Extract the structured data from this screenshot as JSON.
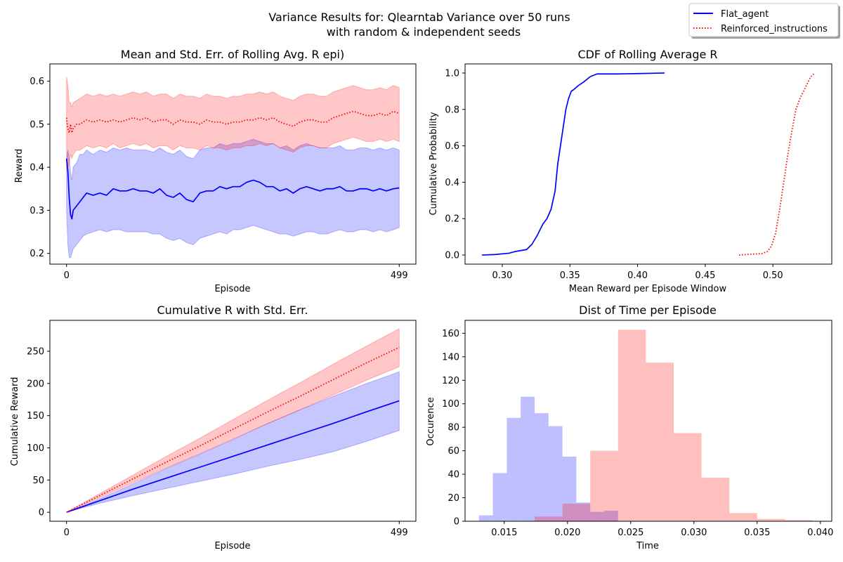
{
  "suptitle": [
    "Variance Results for: Qlearntab Variance over 50 runs",
    "with random & independent seeds"
  ],
  "legend": {
    "placement": "top-right",
    "entries": [
      {
        "label": "Flat_agent",
        "color": "#0000ff",
        "style": "solid"
      },
      {
        "label": "Reinforced_instructions",
        "color": "#ff0000",
        "style": "dotted"
      }
    ]
  },
  "colors": {
    "flat": "#0000ff",
    "reinforced": "#ff0000",
    "flat_fill": "#0000ff",
    "reinforced_fill": "#ff0000"
  },
  "chart_data": [
    {
      "id": "rolling",
      "type": "line",
      "title": "Mean and Std. Err. of Rolling Avg. R epi)",
      "xlabel": "Episode",
      "ylabel": "Reward",
      "xlim": [
        -25,
        524
      ],
      "ylim": [
        0.175,
        0.64
      ],
      "xticks": [
        0,
        499
      ],
      "yticks": [
        0.2,
        0.3,
        0.4,
        0.5,
        0.6
      ],
      "ytick_labels": [
        "0.2",
        "0.3",
        "0.4",
        "0.5",
        "0.6"
      ],
      "series": [
        {
          "key": "flat",
          "style": "solid",
          "x": [
            0,
            2,
            4,
            6,
            8,
            10,
            15,
            20,
            25,
            30,
            40,
            50,
            60,
            70,
            80,
            90,
            100,
            110,
            120,
            130,
            140,
            150,
            160,
            170,
            180,
            190,
            200,
            210,
            220,
            230,
            240,
            250,
            260,
            270,
            280,
            290,
            300,
            310,
            320,
            330,
            340,
            350,
            360,
            370,
            380,
            390,
            400,
            410,
            420,
            430,
            440,
            450,
            460,
            470,
            480,
            490,
            499
          ],
          "mean": [
            0.42,
            0.39,
            0.33,
            0.29,
            0.28,
            0.3,
            0.31,
            0.32,
            0.33,
            0.34,
            0.335,
            0.34,
            0.335,
            0.35,
            0.345,
            0.345,
            0.35,
            0.345,
            0.345,
            0.34,
            0.35,
            0.335,
            0.33,
            0.34,
            0.325,
            0.32,
            0.34,
            0.345,
            0.345,
            0.355,
            0.35,
            0.355,
            0.355,
            0.365,
            0.37,
            0.365,
            0.355,
            0.355,
            0.345,
            0.35,
            0.34,
            0.35,
            0.355,
            0.35,
            0.345,
            0.35,
            0.35,
            0.355,
            0.345,
            0.345,
            0.35,
            0.35,
            0.345,
            0.35,
            0.345,
            0.35,
            0.352
          ],
          "lower": [
            0.3,
            0.22,
            0.19,
            0.19,
            0.2,
            0.21,
            0.22,
            0.23,
            0.24,
            0.245,
            0.25,
            0.255,
            0.25,
            0.255,
            0.255,
            0.25,
            0.25,
            0.25,
            0.25,
            0.245,
            0.245,
            0.235,
            0.23,
            0.235,
            0.225,
            0.22,
            0.235,
            0.24,
            0.245,
            0.25,
            0.245,
            0.255,
            0.255,
            0.26,
            0.265,
            0.26,
            0.255,
            0.25,
            0.245,
            0.245,
            0.24,
            0.245,
            0.25,
            0.25,
            0.245,
            0.245,
            0.25,
            0.255,
            0.25,
            0.25,
            0.255,
            0.255,
            0.25,
            0.255,
            0.25,
            0.255,
            0.26
          ],
          "upper": [
            0.42,
            0.44,
            0.42,
            0.39,
            0.37,
            0.4,
            0.41,
            0.43,
            0.43,
            0.44,
            0.43,
            0.44,
            0.435,
            0.445,
            0.44,
            0.445,
            0.44,
            0.44,
            0.44,
            0.435,
            0.445,
            0.435,
            0.43,
            0.44,
            0.425,
            0.42,
            0.44,
            0.445,
            0.445,
            0.455,
            0.45,
            0.455,
            0.455,
            0.46,
            0.465,
            0.46,
            0.455,
            0.455,
            0.445,
            0.45,
            0.44,
            0.45,
            0.455,
            0.45,
            0.445,
            0.445,
            0.445,
            0.45,
            0.44,
            0.44,
            0.445,
            0.445,
            0.44,
            0.445,
            0.44,
            0.445,
            0.44
          ]
        },
        {
          "key": "reinforced",
          "style": "dotted",
          "x": [
            0,
            2,
            4,
            6,
            8,
            10,
            15,
            20,
            25,
            30,
            40,
            50,
            60,
            70,
            80,
            90,
            100,
            110,
            120,
            130,
            140,
            150,
            160,
            170,
            180,
            190,
            200,
            210,
            220,
            230,
            240,
            250,
            260,
            270,
            280,
            290,
            300,
            310,
            320,
            330,
            340,
            350,
            360,
            370,
            380,
            390,
            400,
            410,
            420,
            430,
            440,
            450,
            460,
            470,
            480,
            490,
            499
          ],
          "mean": [
            0.515,
            0.49,
            0.48,
            0.5,
            0.48,
            0.49,
            0.5,
            0.5,
            0.505,
            0.51,
            0.505,
            0.51,
            0.505,
            0.51,
            0.505,
            0.51,
            0.515,
            0.51,
            0.515,
            0.505,
            0.51,
            0.51,
            0.5,
            0.51,
            0.505,
            0.505,
            0.5,
            0.51,
            0.505,
            0.505,
            0.5,
            0.505,
            0.505,
            0.51,
            0.51,
            0.515,
            0.51,
            0.515,
            0.505,
            0.5,
            0.495,
            0.505,
            0.51,
            0.51,
            0.505,
            0.505,
            0.515,
            0.52,
            0.525,
            0.53,
            0.525,
            0.52,
            0.52,
            0.525,
            0.52,
            0.53,
            0.525
          ],
          "lower": [
            0.43,
            0.4,
            0.41,
            0.43,
            0.42,
            0.43,
            0.44,
            0.44,
            0.445,
            0.45,
            0.445,
            0.45,
            0.445,
            0.455,
            0.445,
            0.45,
            0.455,
            0.45,
            0.455,
            0.445,
            0.45,
            0.45,
            0.44,
            0.45,
            0.445,
            0.445,
            0.44,
            0.45,
            0.445,
            0.445,
            0.44,
            0.445,
            0.445,
            0.45,
            0.45,
            0.455,
            0.45,
            0.455,
            0.445,
            0.44,
            0.435,
            0.445,
            0.45,
            0.45,
            0.445,
            0.445,
            0.455,
            0.46,
            0.465,
            0.47,
            0.465,
            0.46,
            0.46,
            0.465,
            0.46,
            0.465,
            0.46
          ],
          "upper": [
            0.61,
            0.59,
            0.55,
            0.55,
            0.54,
            0.55,
            0.555,
            0.56,
            0.565,
            0.57,
            0.565,
            0.57,
            0.565,
            0.57,
            0.565,
            0.57,
            0.575,
            0.57,
            0.575,
            0.565,
            0.57,
            0.57,
            0.56,
            0.57,
            0.565,
            0.565,
            0.56,
            0.57,
            0.565,
            0.565,
            0.56,
            0.565,
            0.565,
            0.57,
            0.57,
            0.575,
            0.57,
            0.575,
            0.565,
            0.56,
            0.555,
            0.565,
            0.57,
            0.57,
            0.565,
            0.565,
            0.575,
            0.58,
            0.585,
            0.59,
            0.585,
            0.58,
            0.58,
            0.585,
            0.58,
            0.59,
            0.585
          ]
        }
      ]
    },
    {
      "id": "cdf",
      "type": "line",
      "title": "CDF of Rolling Average R",
      "xlabel": "Mean Reward per Episode Window",
      "ylabel": "Cumulative Probability",
      "xlim": [
        0.2725,
        0.5435
      ],
      "ylim": [
        -0.05,
        1.05
      ],
      "xticks": [
        0.3,
        0.35,
        0.4,
        0.45,
        0.5
      ],
      "xtick_labels": [
        "0.30",
        "0.35",
        "0.40",
        "0.45",
        "0.50"
      ],
      "yticks": [
        0.0,
        0.2,
        0.4,
        0.6,
        0.8,
        1.0
      ],
      "ytick_labels": [
        "0.0",
        "0.2",
        "0.4",
        "0.6",
        "0.8",
        "1.0"
      ],
      "series": [
        {
          "key": "flat",
          "style": "solid",
          "x": [
            0.285,
            0.295,
            0.305,
            0.31,
            0.318,
            0.322,
            0.326,
            0.33,
            0.333,
            0.336,
            0.339,
            0.341,
            0.343,
            0.345,
            0.347,
            0.349,
            0.351,
            0.353,
            0.356,
            0.36,
            0.365,
            0.37,
            0.375,
            0.385,
            0.4,
            0.42
          ],
          "y": [
            0.0,
            0.003,
            0.01,
            0.02,
            0.03,
            0.06,
            0.11,
            0.17,
            0.2,
            0.25,
            0.35,
            0.5,
            0.6,
            0.7,
            0.8,
            0.86,
            0.9,
            0.91,
            0.93,
            0.95,
            0.98,
            0.995,
            0.995,
            0.995,
            0.997,
            1.0
          ],
          "lower": [],
          "upper": []
        },
        {
          "key": "reinforced",
          "style": "dotted",
          "x": [
            0.475,
            0.485,
            0.492,
            0.496,
            0.499,
            0.502,
            0.505,
            0.508,
            0.511,
            0.514,
            0.517,
            0.52,
            0.524,
            0.528,
            0.531
          ],
          "y": [
            0.0,
            0.005,
            0.008,
            0.02,
            0.05,
            0.12,
            0.25,
            0.4,
            0.55,
            0.68,
            0.8,
            0.86,
            0.92,
            0.98,
            1.0
          ],
          "lower": [],
          "upper": []
        }
      ]
    },
    {
      "id": "cumulative",
      "type": "line",
      "title": "Cumulative R with Std. Err.",
      "xlabel": "Episode",
      "ylabel": "Cumulative Reward",
      "xlim": [
        -25,
        524
      ],
      "ylim": [
        -14,
        298
      ],
      "xticks": [
        0,
        499
      ],
      "yticks": [
        0,
        50,
        100,
        150,
        200,
        250
      ],
      "ytick_labels": [
        "0",
        "50",
        "100",
        "150",
        "200",
        "250"
      ],
      "series": [
        {
          "key": "flat",
          "style": "solid",
          "x": [
            0,
            50,
            100,
            150,
            200,
            250,
            300,
            350,
            400,
            450,
            499
          ],
          "mean": [
            0,
            18,
            36,
            53,
            70,
            87,
            104,
            121,
            138,
            156,
            173
          ],
          "lower": [
            0,
            14,
            26,
            37,
            48,
            59,
            71,
            82,
            94,
            110,
            127
          ],
          "upper": [
            0,
            21,
            44,
            68,
            90,
            113,
            137,
            159,
            180,
            200,
            218
          ]
        },
        {
          "key": "reinforced",
          "style": "dotted",
          "x": [
            0,
            50,
            100,
            150,
            200,
            250,
            300,
            350,
            400,
            450,
            499
          ],
          "mean": [
            0,
            26,
            52,
            78,
            103,
            129,
            155,
            180,
            206,
            232,
            256
          ],
          "lower": [
            0,
            23,
            46,
            69,
            91,
            114,
            137,
            159,
            182,
            205,
            226
          ],
          "upper": [
            0,
            29,
            58,
            87,
            115,
            144,
            173,
            201,
            230,
            258,
            285
          ]
        }
      ]
    },
    {
      "id": "hist",
      "type": "bar",
      "title": "Dist of Time per Episode",
      "xlabel": "Time",
      "ylabel": "Occurence",
      "xlim": [
        0.0119,
        0.0409
      ],
      "ylim": [
        0,
        171
      ],
      "xticks": [
        0.015,
        0.02,
        0.025,
        0.03,
        0.035,
        0.04
      ],
      "xtick_labels": [
        "0.015",
        "0.020",
        "0.025",
        "0.030",
        "0.035",
        "0.040"
      ],
      "yticks": [
        0,
        20,
        40,
        60,
        80,
        100,
        120,
        140,
        160
      ],
      "ytick_labels": [
        "0",
        "20",
        "40",
        "60",
        "80",
        "100",
        "120",
        "140",
        "160"
      ],
      "series": [
        {
          "key": "flat",
          "bin_edges": [
            0.013,
            0.0141,
            0.0152,
            0.0163,
            0.0174,
            0.0185,
            0.0196,
            0.0207,
            0.0218,
            0.0229,
            0.024
          ],
          "counts": [
            5,
            41,
            88,
            106,
            92,
            81,
            55,
            16,
            8,
            9
          ]
        },
        {
          "key": "reinforced",
          "bin_edges": [
            0.0174,
            0.0196,
            0.0218,
            0.024,
            0.0262,
            0.0284,
            0.0306,
            0.0328,
            0.035,
            0.0372,
            0.0394
          ],
          "counts": [
            4,
            15,
            60,
            163,
            135,
            75,
            37,
            7,
            2,
            1
          ]
        }
      ]
    }
  ]
}
